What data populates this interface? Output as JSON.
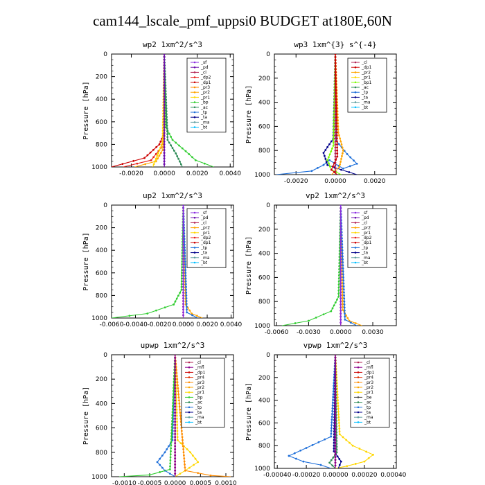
{
  "figure_title": "cam144_lscale_pmf_uppsi0  BUDGET at180E,60N",
  "colors": {
    "_sf": "#8a2be2",
    "_pd": "#6a0dad",
    "_cl": "#b22252",
    "_mfl": "#8b008b",
    "_dp1": "#cc0000",
    "_dp2": "#e8201a",
    "_pr1": "#ffd700",
    "_pr2": "#ffa500",
    "_pr3": "#ff8c00",
    "_pr4": "#e03000",
    "_bp": "#32cd32",
    "_bp1": "#7cfc00",
    "_ac": "#2e8b57",
    "_tp": "#1e6fd9",
    "_ta": "#00008b",
    "_ma": "#5f9ea0",
    "_bt": "#00bfff"
  },
  "chart_data": [
    {
      "type": "line",
      "title": "wp2  1xm^2/s^3",
      "ylabel": "Pressure [hPa]",
      "xlim": [
        -0.0032,
        0.0042
      ],
      "ylim": [
        1000,
        0
      ],
      "xticks": [
        -0.002,
        0.0,
        0.002,
        0.004
      ],
      "xtick_labels": [
        "-0.0020",
        "0.0000",
        "0.0020",
        "0.0040"
      ],
      "yticks": [
        0,
        200,
        400,
        600,
        800,
        1000
      ],
      "legend": [
        "_sf",
        "_pd",
        "_cl",
        "_dp2",
        "_dp1",
        "_pr3",
        "_pr2",
        "_pr1",
        "_bp",
        "_ac",
        "_tp",
        "_ta",
        "_ma",
        "_bt"
      ],
      "series": [
        {
          "name": "_cl",
          "x": [
            0,
            0,
            0,
            0,
            0
          ],
          "y": [
            0,
            300,
            600,
            800,
            1000
          ]
        },
        {
          "name": "_dp1",
          "x": [
            0,
            0,
            -0.0003,
            -0.0012,
            -0.0032
          ],
          "y": [
            0,
            700,
            800,
            920,
            1000
          ]
        },
        {
          "name": "_dp2",
          "x": [
            0,
            0,
            -0.0002,
            -0.0008,
            -0.0025
          ],
          "y": [
            0,
            720,
            830,
            940,
            1000
          ]
        },
        {
          "name": "_pr2",
          "x": [
            0,
            0,
            -0.0001,
            -0.0005,
            -0.0018
          ],
          "y": [
            0,
            720,
            850,
            950,
            1000
          ]
        },
        {
          "name": "_bp",
          "x": [
            0,
            0.0001,
            0.0005,
            0.0013,
            0.0019,
            0.003
          ],
          "y": [
            0,
            650,
            760,
            860,
            940,
            1000
          ]
        },
        {
          "name": "_ac",
          "x": [
            0,
            0.0002,
            0.0007,
            0.0011
          ],
          "y": [
            0,
            760,
            880,
            1000
          ]
        },
        {
          "name": "_pr1",
          "x": [
            0,
            -0.0001,
            -0.0007
          ],
          "y": [
            0,
            780,
            1000
          ]
        },
        {
          "name": "_sf",
          "x": [
            0,
            0,
            0
          ],
          "y": [
            0,
            500,
            1000
          ]
        },
        {
          "name": "_pd",
          "x": [
            0,
            0,
            0
          ],
          "y": [
            0,
            500,
            1000
          ]
        }
      ]
    },
    {
      "type": "line",
      "title": "wp3  1xm^{3} s^{-4}",
      "ylabel": "Pressure [hPa]",
      "xlim": [
        -0.0031,
        0.0031
      ],
      "ylim": [
        1000,
        0
      ],
      "xticks": [
        -0.002,
        0.0,
        0.002
      ],
      "xtick_labels": [
        "-0.0020",
        "0.0000",
        "0.0020"
      ],
      "yticks": [
        0,
        200,
        400,
        600,
        800,
        1000
      ],
      "legend": [
        "_cl",
        "_dp1",
        "_pr2",
        "_pr1",
        "_bp1",
        "_ac",
        "_tp",
        "_ta",
        "_ma",
        "_bt"
      ],
      "series": [
        {
          "name": "_tp",
          "x": [
            0,
            5e-05,
            0.0006,
            0.0011,
            0.0004,
            -0.0003,
            -0.0006,
            -0.0012,
            -0.003
          ],
          "y": [
            0,
            720,
            830,
            910,
            950,
            880,
            920,
            970,
            1000
          ]
        },
        {
          "name": "_ta",
          "x": [
            0,
            -0.0001,
            -0.0006,
            -0.0004,
            0.0003,
            0.0011
          ],
          "y": [
            0,
            700,
            820,
            920,
            960,
            1000
          ]
        },
        {
          "name": "_pr2",
          "x": [
            0,
            0.00015,
            0.0004,
            0.0002,
            -0.0002
          ],
          "y": [
            0,
            650,
            800,
            940,
            1000
          ]
        },
        {
          "name": "_bp1",
          "x": [
            0,
            -0.0001,
            -0.0004,
            -0.0002,
            0.0003
          ],
          "y": [
            0,
            760,
            880,
            960,
            1000
          ]
        },
        {
          "name": "_cl",
          "x": [
            0,
            0,
            0
          ],
          "y": [
            0,
            500,
            1000
          ]
        },
        {
          "name": "_dp1",
          "x": [
            0,
            0.0001,
            -0.0002,
            0.0001
          ],
          "y": [
            0,
            850,
            960,
            1000
          ]
        }
      ]
    },
    {
      "type": "line",
      "title": "up2  1xm^2/s^3",
      "ylabel": "Pressure [hPa]",
      "xlim": [
        -0.006,
        0.0042
      ],
      "ylim": [
        1000,
        0
      ],
      "xticks": [
        -0.006,
        -0.004,
        -0.002,
        0.0,
        0.002,
        0.004
      ],
      "xtick_labels": [
        "-0.0060",
        "-0.0040",
        "-0.0020",
        "0.0000",
        "0.0020",
        "0.0040"
      ],
      "yticks": [
        0,
        200,
        400,
        600,
        800,
        1000
      ],
      "legend": [
        "_sf",
        "_pd",
        "_cl",
        "_pr2",
        "_pr1",
        "_dp2",
        "_dp1",
        "_tp",
        "_ta",
        "_ma",
        "_bt"
      ],
      "series": [
        {
          "name": "_dp1",
          "x": [
            0,
            0,
            0
          ],
          "y": [
            0,
            500,
            1000
          ]
        },
        {
          "name": "_bp",
          "x": [
            0,
            -0.00015,
            -0.0008,
            -0.003,
            -0.006
          ],
          "y": [
            0,
            750,
            880,
            960,
            1000
          ]
        },
        {
          "name": "_pr2",
          "x": [
            0,
            0.0002,
            0.0007,
            0.0016
          ],
          "y": [
            0,
            880,
            960,
            1000
          ]
        },
        {
          "name": "_tp",
          "x": [
            0,
            0.0003,
            0.0012
          ],
          "y": [
            0,
            950,
            1000
          ]
        },
        {
          "name": "_sf",
          "x": [
            0,
            0,
            0
          ],
          "y": [
            0,
            500,
            1000
          ]
        }
      ]
    },
    {
      "type": "line",
      "title": "vp2  1xm^2/s^3",
      "ylabel": "Pressure [hPa]",
      "xlim": [
        -0.0062,
        0.0052
      ],
      "ylim": [
        1000,
        0
      ],
      "xticks": [
        -0.006,
        -0.003,
        0.0,
        0.003
      ],
      "xtick_labels": [
        "-0.0060",
        "-0.0030",
        "0.0000",
        "0.0030"
      ],
      "yticks": [
        0,
        200,
        400,
        600,
        800,
        1000
      ],
      "legend": [
        "_sf",
        "_pd",
        "_cl",
        "_pr2",
        "_pr1",
        "_dp2",
        "_dp1",
        "_tp",
        "_ta",
        "_ma",
        "_bt"
      ],
      "series": [
        {
          "name": "_dp1",
          "x": [
            0,
            0,
            0
          ],
          "y": [
            0,
            500,
            1000
          ]
        },
        {
          "name": "_bp",
          "x": [
            0,
            -0.0002,
            -0.0009,
            -0.003,
            -0.0055
          ],
          "y": [
            0,
            760,
            880,
            960,
            1000
          ]
        },
        {
          "name": "_pr2",
          "x": [
            0,
            0.0002,
            0.0008,
            0.002
          ],
          "y": [
            0,
            870,
            960,
            1000
          ]
        },
        {
          "name": "_tp",
          "x": [
            0,
            0.0004,
            0.0015
          ],
          "y": [
            0,
            950,
            1000
          ]
        },
        {
          "name": "_sf",
          "x": [
            0,
            0,
            0
          ],
          "y": [
            0,
            500,
            1000
          ]
        }
      ]
    },
    {
      "type": "line",
      "title": "upwp  1xm^2/s^3",
      "ylabel": "Pressure [hPa]",
      "xlim": [
        -0.00125,
        0.00115
      ],
      "ylim": [
        1000,
        0
      ],
      "xticks": [
        -0.001,
        -0.0005,
        0.0,
        0.0005,
        0.001
      ],
      "xtick_labels": [
        "-0.0010",
        "-0.0005",
        "0.0000",
        "0.0005",
        "0.0010"
      ],
      "yticks": [
        0,
        200,
        400,
        600,
        800,
        1000
      ],
      "legend": [
        "_cl",
        "_mfl",
        "_dp1",
        "_pr4",
        "_pr3",
        "_pr2",
        "_pr1",
        "_bp",
        "_ac",
        "_tp",
        "_ta",
        "_ma",
        "_bt"
      ],
      "series": [
        {
          "name": "_pr1",
          "x": [
            0,
            5e-05,
            0.0003,
            0.00045,
            0.0002,
            0.0
          ],
          "y": [
            0,
            700,
            800,
            880,
            950,
            1000
          ]
        },
        {
          "name": "_tp",
          "x": [
            0,
            -5e-05,
            -0.0002,
            -0.00035,
            -0.0002,
            0.0
          ],
          "y": [
            0,
            700,
            800,
            880,
            950,
            1000
          ]
        },
        {
          "name": "_bp",
          "x": [
            0,
            -0.0001,
            -0.0005,
            -0.0011
          ],
          "y": [
            0,
            940,
            985,
            1000
          ]
        },
        {
          "name": "_pr3",
          "x": [
            0,
            0.0002,
            0.0007,
            0.0011
          ],
          "y": [
            0,
            950,
            990,
            1000
          ]
        },
        {
          "name": "_cl",
          "x": [
            0,
            0,
            0
          ],
          "y": [
            0,
            500,
            1000
          ]
        },
        {
          "name": "_mfl",
          "x": [
            0,
            0,
            0
          ],
          "y": [
            0,
            500,
            1000
          ]
        }
      ]
    },
    {
      "type": "line",
      "title": "vpwp  1xm^2/s^3",
      "ylabel": "Pressure [hPa]",
      "xlim": [
        -0.00042,
        0.00042
      ],
      "ylim": [
        1000,
        0
      ],
      "xticks": [
        -0.0004,
        -0.0002,
        0.0,
        0.0002,
        0.0004
      ],
      "xtick_labels": [
        "-0.00040",
        "-0.00020",
        "0.00000",
        "0.00020",
        "0.00040"
      ],
      "yticks": [
        0,
        200,
        400,
        600,
        800,
        1000
      ],
      "legend": [
        "_cl",
        "_mfl",
        "_dp1",
        "_pr4",
        "_pr3",
        "_pr2",
        "_pr1",
        "_be",
        "_ac",
        "_tp",
        "_ta",
        "_ma",
        "_bt"
      ],
      "series": [
        {
          "name": "_tp",
          "x": [
            0,
            -3e-05,
            -0.0002,
            -0.00032,
            -0.00022,
            -0.0001,
            -3e-05
          ],
          "y": [
            0,
            720,
            820,
            890,
            940,
            970,
            1000
          ]
        },
        {
          "name": "_pr1",
          "x": [
            0,
            3e-05,
            0.00012,
            0.00026,
            0.0002,
            8e-05,
            0.0
          ],
          "y": [
            0,
            700,
            800,
            880,
            940,
            980,
            1000
          ]
        },
        {
          "name": "_ta",
          "x": [
            0,
            -1e-05,
            4e-05,
            2e-05
          ],
          "y": [
            0,
            850,
            940,
            1000
          ]
        },
        {
          "name": "_ac",
          "x": [
            0,
            1e-05,
            -4e-05,
            0.0
          ],
          "y": [
            0,
            860,
            950,
            1000
          ]
        },
        {
          "name": "_cl",
          "x": [
            0,
            0,
            0
          ],
          "y": [
            0,
            500,
            1000
          ]
        },
        {
          "name": "_mfl",
          "x": [
            0,
            0,
            0
          ],
          "y": [
            0,
            500,
            1000
          ]
        }
      ]
    }
  ]
}
